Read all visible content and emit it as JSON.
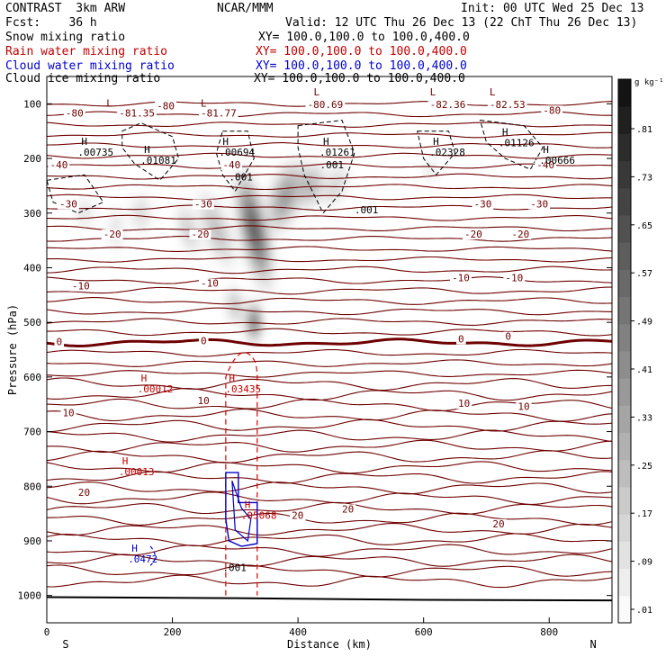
{
  "header": {
    "model": "CONTRAST  3km ARW",
    "org": "NCAR/MMM",
    "init": "Init: 00 UTC Wed 25 Dec 13",
    "fcst": "Fcst:    36 h",
    "valid": "Valid: 12 UTC Thu 26 Dec 13 (22 ChT Thu 26 Dec 13)",
    "fields": [
      {
        "label": "Snow mixing ratio",
        "xy": "XY= 100.0,100.0 to 100.0,400.0",
        "color": "#000000"
      },
      {
        "label": "Rain water mixing ratio",
        "xy": "XY= 100.0,100.0 to 100.0,400.0",
        "color": "#c00000"
      },
      {
        "label": "Cloud water mixing ratio",
        "xy": "XY= 100.0,100.0 to 100.0,400.0",
        "color": "#0000cc"
      },
      {
        "label": "Cloud ice mixing ratio",
        "xy": "XY= 100.0,100.0 to 100.0,400.0",
        "color": "#000000"
      }
    ]
  },
  "colorbar": {
    "unit": "g kg⁻¹",
    "ticks": [
      ".81",
      ".73",
      ".65",
      ".57",
      ".49",
      ".41",
      ".33",
      ".25",
      ".17",
      ".09",
      ".01"
    ]
  },
  "chart_data": {
    "type": "contour",
    "xlabel": "Distance (km)",
    "ylabel": "Pressure (hPa)",
    "xlim": [
      0,
      900
    ],
    "ylim": [
      1050,
      50
    ],
    "xticks": [
      0,
      200,
      400,
      600,
      800
    ],
    "yticks": [
      100,
      200,
      300,
      400,
      500,
      600,
      700,
      800,
      900,
      1000
    ],
    "x_end_labels": {
      "left": "S",
      "right": "N"
    },
    "temperature_contours": [
      {
        "label": "-80",
        "p": 118
      },
      {
        "label": "-40",
        "p": 218
      },
      {
        "label": "-30",
        "p": 298
      },
      {
        "label": "-20",
        "p": 355
      },
      {
        "label": "-10",
        "p": 445
      },
      {
        "label": "0",
        "p": 535,
        "bold": true
      },
      {
        "label": "10",
        "p": 665
      },
      {
        "label": "20",
        "p": 830
      }
    ],
    "temperature_labels": [
      {
        "text": "-80",
        "x": 30,
        "p": 123
      },
      {
        "text": "-81.35",
        "x": 115,
        "p": 123
      },
      {
        "text": "-80",
        "x": 175,
        "p": 110
      },
      {
        "text": "-81.77",
        "x": 245,
        "p": 123
      },
      {
        "text": "-80.69",
        "x": 415,
        "p": 108
      },
      {
        "text": "-82.36",
        "x": 610,
        "p": 108
      },
      {
        "text": "-82.53",
        "x": 705,
        "p": 108
      },
      {
        "text": "-80",
        "x": 790,
        "p": 118
      },
      {
        "text": "-40",
        "x": 5,
        "p": 218
      },
      {
        "text": "-40",
        "x": 280,
        "p": 218
      },
      {
        "text": "-40",
        "x": 780,
        "p": 218
      },
      {
        "text": "-30",
        "x": 20,
        "p": 290
      },
      {
        "text": "-30",
        "x": 235,
        "p": 290
      },
      {
        "text": "-30",
        "x": 680,
        "p": 290
      },
      {
        "text": "-30",
        "x": 770,
        "p": 290
      },
      {
        "text": "-20",
        "x": 90,
        "p": 345
      },
      {
        "text": "-20",
        "x": 230,
        "p": 345
      },
      {
        "text": "-20",
        "x": 665,
        "p": 345
      },
      {
        "text": "-20",
        "x": 740,
        "p": 345
      },
      {
        "text": "-10",
        "x": 40,
        "p": 440
      },
      {
        "text": "-10",
        "x": 245,
        "p": 435
      },
      {
        "text": "-10",
        "x": 645,
        "p": 425
      },
      {
        "text": "-10",
        "x": 730,
        "p": 425
      },
      {
        "text": "0",
        "x": 15,
        "p": 542
      },
      {
        "text": "0",
        "x": 245,
        "p": 540
      },
      {
        "text": "0",
        "x": 655,
        "p": 537
      },
      {
        "text": "0",
        "x": 730,
        "p": 532
      },
      {
        "text": "10",
        "x": 25,
        "p": 672
      },
      {
        "text": "10",
        "x": 240,
        "p": 650
      },
      {
        "text": "10",
        "x": 655,
        "p": 655
      },
      {
        "text": "10",
        "x": 750,
        "p": 660
      },
      {
        "text": "20",
        "x": 50,
        "p": 818
      },
      {
        "text": "20",
        "x": 390,
        "p": 860
      },
      {
        "text": "20",
        "x": 470,
        "p": 848
      },
      {
        "text": "20",
        "x": 710,
        "p": 875
      }
    ],
    "maxima_labels": [
      {
        "mark": "H",
        "value": ".00735",
        "x": 55,
        "p": 195,
        "color": "#000000"
      },
      {
        "mark": "H",
        "value": ".01081",
        "x": 155,
        "p": 210,
        "color": "#000000"
      },
      {
        "mark": "H",
        "value": ".00694",
        "x": 280,
        "p": 195,
        "color": "#000000"
      },
      {
        "mark": "H",
        "value": ".01261",
        "x": 440,
        "p": 195,
        "color": "#000000"
      },
      {
        "mark": "H",
        "value": ".02328",
        "x": 615,
        "p": 195,
        "color": "#000000"
      },
      {
        "mark": "H",
        "value": ".01126",
        "x": 725,
        "p": 178,
        "color": "#000000"
      },
      {
        "mark": "H",
        "value": ".00666",
        "x": 790,
        "p": 210,
        "color": "#000000"
      },
      {
        "mark": "H",
        "value": ".00012",
        "x": 150,
        "p": 628,
        "color": "#c00000"
      },
      {
        "mark": "H",
        "value": ".03435",
        "x": 290,
        "p": 628,
        "color": "#c00000"
      },
      {
        "mark": "H",
        "value": ".00013",
        "x": 120,
        "p": 780,
        "color": "#c00000"
      },
      {
        "mark": "H",
        "value": ".0472",
        "x": 135,
        "p": 940,
        "color": "#0000cc"
      },
      {
        "mark": "H",
        "value": ".05068",
        "x": 315,
        "p": 860,
        "color": "#c00000"
      }
    ],
    "minima_labels": [
      {
        "mark": "L",
        "x": 95,
        "p": 105
      },
      {
        "mark": "L",
        "x": 245,
        "p": 105
      },
      {
        "mark": "L",
        "x": 425,
        "p": 85
      },
      {
        "mark": "L",
        "x": 610,
        "p": 85
      },
      {
        "mark": "L",
        "x": 705,
        "p": 85
      }
    ],
    "snow_contour_labels": [
      {
        "text": ".001",
        "x": 290,
        "p": 240
      },
      {
        "text": ".001",
        "x": 435,
        "p": 218
      },
      {
        "text": ".001",
        "x": 490,
        "p": 300
      },
      {
        "text": ".001",
        "x": 280,
        "p": 955
      }
    ],
    "snow_shading_centers": [
      {
        "x": 330,
        "p": 440,
        "max": 0.81
      },
      {
        "x": 380,
        "p": 270,
        "max": 0.5
      },
      {
        "x": 430,
        "p": 240,
        "max": 0.3
      }
    ]
  }
}
